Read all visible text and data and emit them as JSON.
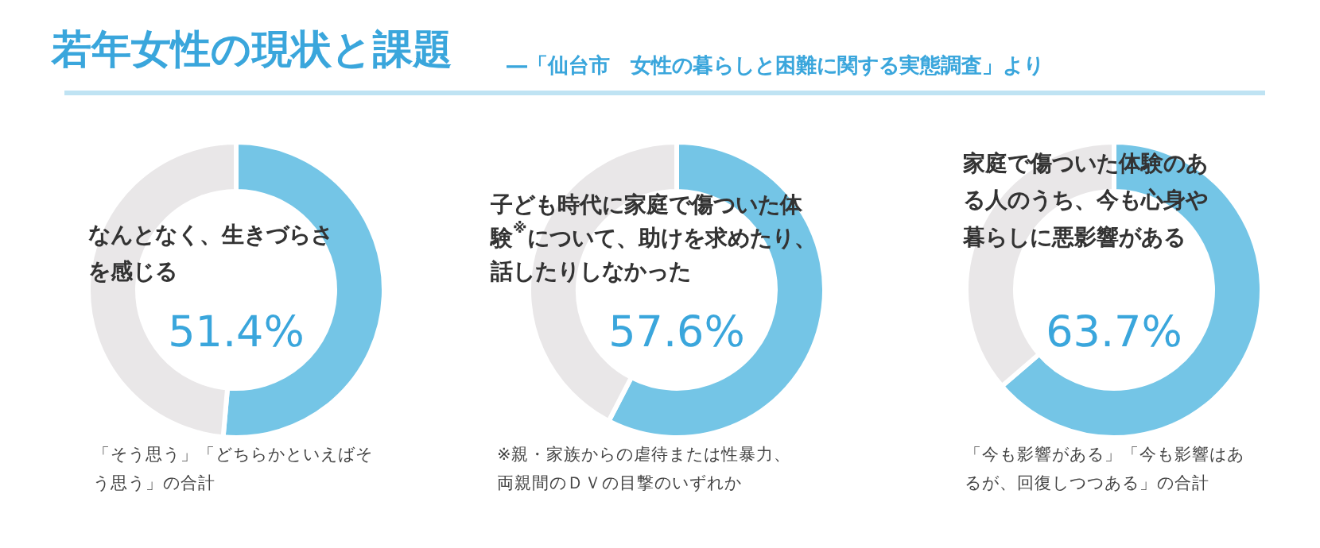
{
  "chart_data": [
    {
      "type": "donut",
      "title": "若年女性の現状と課題",
      "categories": [
        null,
        null
      ],
      "values": [
        51.4,
        48.6
      ],
      "colors": [
        "#74c5e6",
        "#e9e7e8"
      ],
      "value_labels": [
        "51.4%",
        null
      ],
      "annotations": [
        "なんとなく、生きづらさを感じる",
        "「そう思う」「どちらかといえばそう思う」の合計"
      ]
    },
    {
      "type": "donut",
      "subtitle": "―「仙台市　女性の暮らしと困難に関する実態調査」より",
      "categories": [
        null,
        null
      ],
      "values": [
        57.6,
        42.4
      ],
      "colors": [
        "#74c5e6",
        "#e9e7e8"
      ],
      "value_labels": [
        "57.6%",
        null
      ],
      "annotations": [
        "子ども時代に家庭で傷ついた体験$^{※}$について、助けを求めたり、話したりしなかった",
        "※親・家族からの虐待または性暴力、両親間のＤＶの目撃のいずれか"
      ]
    },
    {
      "type": "donut",
      "categories": [
        null,
        null
      ],
      "values": [
        63.7,
        36.3
      ],
      "colors": [
        "#74c5e6",
        "#e9e7e8"
      ],
      "value_labels": [
        "63.7%",
        null
      ],
      "annotations": [
        "家庭で傷ついた体験のある人のうち、今も心身や暮らしに悪影響がある",
        "「今も影響がある」「今も影響はあるが、回復しつつある」の合計"
      ]
    }
  ]
}
